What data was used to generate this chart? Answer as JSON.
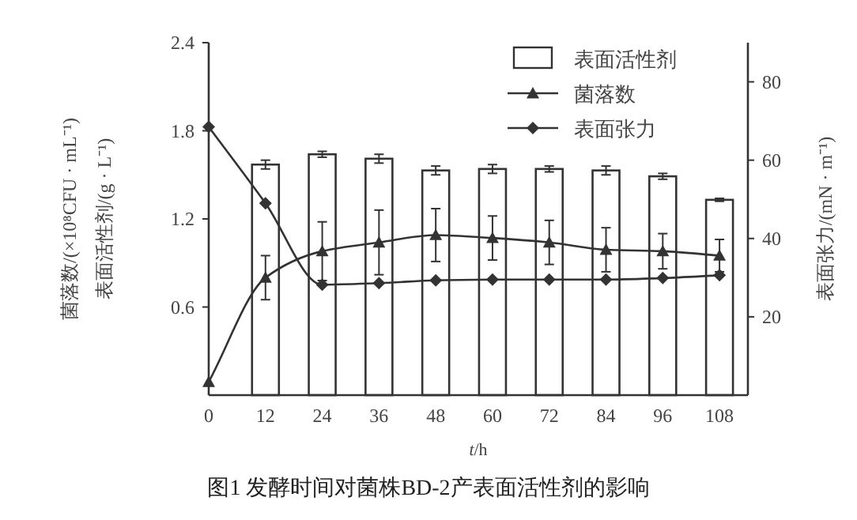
{
  "chart_data": {
    "type": "bar",
    "title": "图1 发酵时间对菌株BD-2产表面活性剂的影响",
    "xlabel": "t/h",
    "ylabel": "菌落数/(×10⁸CFU · mL⁻¹)\n表面活性剂/(g · L⁻¹)",
    "y2label": "表面张力/(mN · m⁻¹)",
    "xlim": [
      0,
      114
    ],
    "xticks": [
      0,
      12,
      24,
      36,
      48,
      60,
      72,
      84,
      96,
      108
    ],
    "ylim": [
      0,
      2.4
    ],
    "yticks": [
      0.6,
      1.2,
      1.8,
      2.4
    ],
    "y2lim": [
      0,
      90
    ],
    "y2ticks": [
      20,
      40,
      60,
      80
    ],
    "grid": false,
    "legend": "top right",
    "series": [
      {
        "name": "表面活性剂",
        "color": "#ffffff",
        "x": [
          12,
          24,
          36,
          48,
          60,
          72,
          84,
          96,
          108
        ],
        "values": [
          1.57,
          1.64,
          1.61,
          1.53,
          1.54,
          1.54,
          1.53,
          1.49,
          1.33
        ],
        "errors": [
          0.03,
          0.02,
          0.03,
          0.03,
          0.03,
          0.02,
          0.03,
          0.02,
          0.01
        ]
      },
      {
        "name": "菌落数",
        "type": "line",
        "color": "#333333",
        "marker": "triangle",
        "x": [
          0,
          12,
          24,
          36,
          48,
          60,
          72,
          84,
          96,
          108
        ],
        "values": [
          0.09,
          0.8,
          0.98,
          1.04,
          1.09,
          1.07,
          1.04,
          0.99,
          0.98,
          0.95
        ],
        "errors": [
          null,
          0.15,
          0.2,
          0.22,
          0.18,
          0.15,
          0.15,
          0.15,
          0.12,
          0.11
        ]
      },
      {
        "name": "表面张力",
        "type": "line",
        "axis": "y2",
        "color": "#333333",
        "marker": "diamond",
        "x": [
          0,
          12,
          24,
          36,
          48,
          60,
          72,
          84,
          96,
          108
        ],
        "values": [
          68.5,
          49,
          28.2,
          28.6,
          29.3,
          29.5,
          29.5,
          29.5,
          29.9,
          30.6
        ]
      }
    ]
  }
}
